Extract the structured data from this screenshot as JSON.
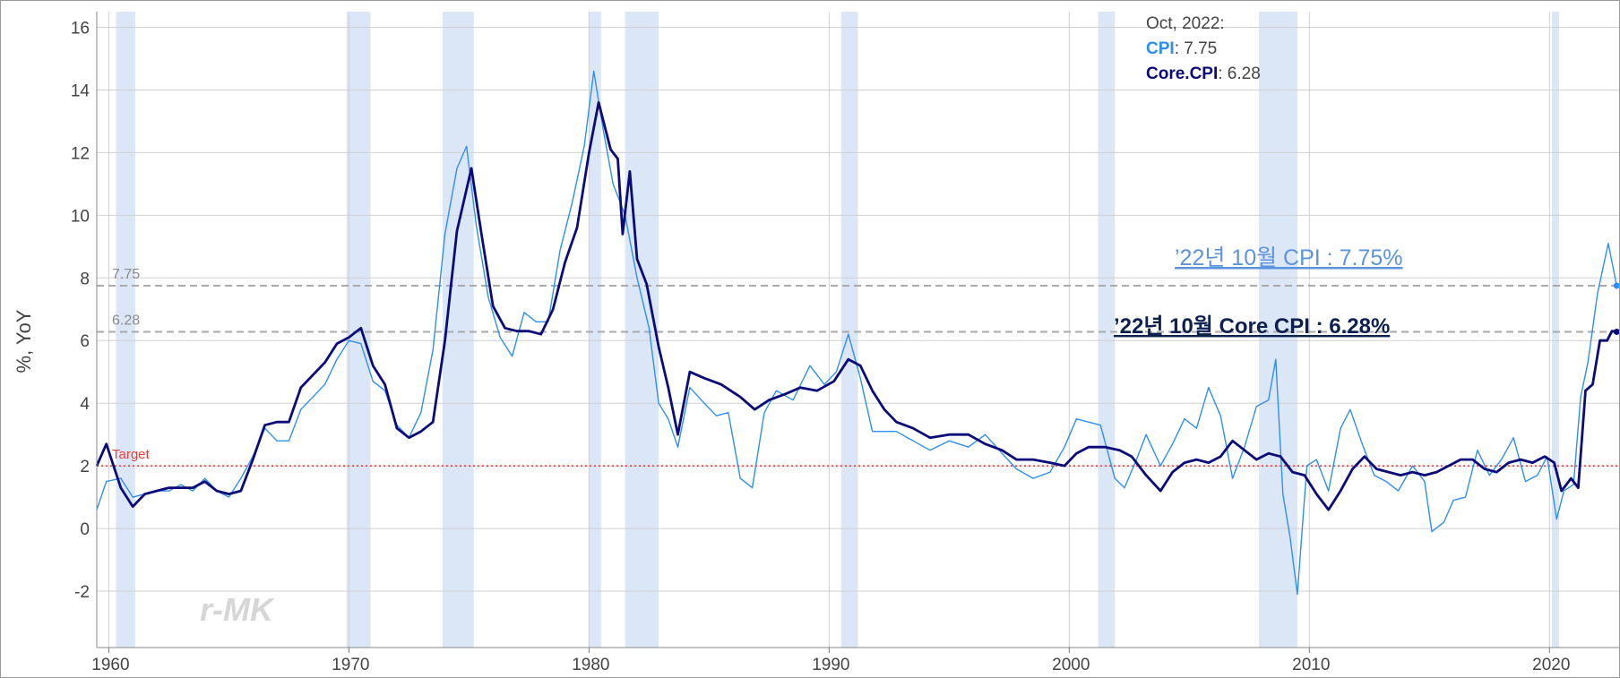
{
  "colors": {
    "cpi": "#2e8ff0",
    "core_cpi": "#0a0a7a",
    "recession": "#dbe7f7",
    "target": "#e8403a",
    "reference": "#aaaaaa",
    "grid": "#d0d0d0",
    "annot_cpi": "#5b93e0",
    "annot_core": "#0d2150"
  },
  "tooltip": {
    "date": "Oct, 2022:",
    "cpi_name": "CPI",
    "cpi_value": ": 7.75",
    "core_name": "Core.CPI",
    "core_value": ": 6.28"
  },
  "annotations": {
    "cpi": "’22년 10월 CPI : 7.75%",
    "core": "’22년 10월 Core CPI : 6.28%"
  },
  "watermark": "r-MK",
  "chart_data": {
    "type": "line",
    "ylabel": "%, YoY",
    "xlabel": "",
    "xlim": [
      1959.5,
      2022.9
    ],
    "ylim": [
      -3.8,
      16.5
    ],
    "x_ticks": [
      "1960",
      "1970",
      "1980",
      "1990",
      "2000",
      "2010",
      "2020"
    ],
    "y_ticks": [
      "16",
      "14",
      "12",
      "10",
      "8",
      "6",
      "4",
      "2",
      "0",
      "-2"
    ],
    "grid": true,
    "reference_lines": [
      {
        "label": "7.75",
        "y": 7.75,
        "style": "dashed"
      },
      {
        "label": "6.28",
        "y": 6.28,
        "style": "dashed"
      },
      {
        "label": "Target",
        "y": 2,
        "style": "dotted"
      }
    ],
    "recessions": [
      [
        1960.3,
        1961.1
      ],
      [
        1969.9,
        1970.9
      ],
      [
        1973.9,
        1975.2
      ],
      [
        1980.0,
        1980.5
      ],
      [
        1981.5,
        1982.9
      ],
      [
        1990.5,
        1991.2
      ],
      [
        2001.2,
        2001.9
      ],
      [
        2007.9,
        2009.5
      ],
      [
        2020.1,
        2020.4
      ]
    ],
    "series": [
      {
        "name": "CPI",
        "points": [
          [
            1959.5,
            0.6
          ],
          [
            1959.9,
            1.5
          ],
          [
            1960.5,
            1.6
          ],
          [
            1961.0,
            1.0
          ],
          [
            1961.5,
            1.1
          ],
          [
            1962.0,
            1.2
          ],
          [
            1962.5,
            1.2
          ],
          [
            1963.0,
            1.4
          ],
          [
            1963.5,
            1.2
          ],
          [
            1964.0,
            1.6
          ],
          [
            1964.5,
            1.2
          ],
          [
            1965.0,
            1.0
          ],
          [
            1965.5,
            1.6
          ],
          [
            1966.0,
            2.3
          ],
          [
            1966.5,
            3.2
          ],
          [
            1967.0,
            2.8
          ],
          [
            1967.5,
            2.8
          ],
          [
            1968.0,
            3.8
          ],
          [
            1968.5,
            4.2
          ],
          [
            1969.0,
            4.6
          ],
          [
            1969.5,
            5.4
          ],
          [
            1970.0,
            6.0
          ],
          [
            1970.5,
            5.9
          ],
          [
            1971.0,
            4.7
          ],
          [
            1971.5,
            4.4
          ],
          [
            1972.0,
            3.3
          ],
          [
            1972.5,
            2.9
          ],
          [
            1973.0,
            3.7
          ],
          [
            1973.5,
            5.7
          ],
          [
            1974.0,
            9.4
          ],
          [
            1974.5,
            11.5
          ],
          [
            1974.9,
            12.2
          ],
          [
            1975.3,
            9.7
          ],
          [
            1975.8,
            7.4
          ],
          [
            1976.3,
            6.1
          ],
          [
            1976.8,
            5.5
          ],
          [
            1977.3,
            6.9
          ],
          [
            1977.8,
            6.6
          ],
          [
            1978.3,
            6.6
          ],
          [
            1978.8,
            8.9
          ],
          [
            1979.3,
            10.4
          ],
          [
            1979.8,
            12.2
          ],
          [
            1980.2,
            14.6
          ],
          [
            1980.6,
            12.7
          ],
          [
            1981.0,
            11.0
          ],
          [
            1981.5,
            10.0
          ],
          [
            1982.0,
            8.0
          ],
          [
            1982.5,
            6.4
          ],
          [
            1982.9,
            4.0
          ],
          [
            1983.3,
            3.5
          ],
          [
            1983.7,
            2.6
          ],
          [
            1984.2,
            4.5
          ],
          [
            1984.8,
            4.0
          ],
          [
            1985.3,
            3.6
          ],
          [
            1985.8,
            3.7
          ],
          [
            1986.3,
            1.6
          ],
          [
            1986.8,
            1.3
          ],
          [
            1987.3,
            3.7
          ],
          [
            1987.8,
            4.4
          ],
          [
            1988.5,
            4.1
          ],
          [
            1989.2,
            5.2
          ],
          [
            1989.8,
            4.6
          ],
          [
            1990.3,
            5.0
          ],
          [
            1990.8,
            6.2
          ],
          [
            1991.3,
            4.8
          ],
          [
            1991.8,
            3.1
          ],
          [
            1992.3,
            3.1
          ],
          [
            1992.8,
            3.1
          ],
          [
            1993.5,
            2.8
          ],
          [
            1994.2,
            2.5
          ],
          [
            1995.0,
            2.8
          ],
          [
            1995.8,
            2.6
          ],
          [
            1996.5,
            3.0
          ],
          [
            1997.2,
            2.4
          ],
          [
            1997.8,
            1.9
          ],
          [
            1998.5,
            1.6
          ],
          [
            1999.2,
            1.8
          ],
          [
            1999.8,
            2.6
          ],
          [
            2000.3,
            3.5
          ],
          [
            2000.8,
            3.4
          ],
          [
            2001.3,
            3.3
          ],
          [
            2001.9,
            1.6
          ],
          [
            2002.3,
            1.3
          ],
          [
            2002.8,
            2.2
          ],
          [
            2003.2,
            3.0
          ],
          [
            2003.8,
            2.0
          ],
          [
            2004.3,
            2.7
          ],
          [
            2004.8,
            3.5
          ],
          [
            2005.3,
            3.2
          ],
          [
            2005.8,
            4.5
          ],
          [
            2006.3,
            3.6
          ],
          [
            2006.8,
            1.6
          ],
          [
            2007.3,
            2.6
          ],
          [
            2007.8,
            3.9
          ],
          [
            2008.3,
            4.1
          ],
          [
            2008.6,
            5.4
          ],
          [
            2008.9,
            1.1
          ],
          [
            2009.2,
            -0.3
          ],
          [
            2009.5,
            -2.1
          ],
          [
            2009.9,
            2.0
          ],
          [
            2010.3,
            2.2
          ],
          [
            2010.8,
            1.2
          ],
          [
            2011.3,
            3.2
          ],
          [
            2011.7,
            3.8
          ],
          [
            2012.2,
            2.7
          ],
          [
            2012.7,
            1.7
          ],
          [
            2013.2,
            1.5
          ],
          [
            2013.7,
            1.2
          ],
          [
            2014.3,
            2.0
          ],
          [
            2014.8,
            1.5
          ],
          [
            2015.1,
            -0.1
          ],
          [
            2015.6,
            0.2
          ],
          [
            2016.0,
            0.9
          ],
          [
            2016.5,
            1.0
          ],
          [
            2017.0,
            2.5
          ],
          [
            2017.5,
            1.7
          ],
          [
            2018.0,
            2.2
          ],
          [
            2018.5,
            2.9
          ],
          [
            2019.0,
            1.5
          ],
          [
            2019.5,
            1.7
          ],
          [
            2019.9,
            2.3
          ],
          [
            2020.3,
            0.3
          ],
          [
            2020.6,
            1.2
          ],
          [
            2021.0,
            1.4
          ],
          [
            2021.3,
            4.2
          ],
          [
            2021.6,
            5.3
          ],
          [
            2022.0,
            7.5
          ],
          [
            2022.45,
            9.1
          ],
          [
            2022.8,
            7.75
          ]
        ]
      },
      {
        "name": "Core.CPI",
        "points": [
          [
            1959.5,
            2.0
          ],
          [
            1959.9,
            2.7
          ],
          [
            1960.5,
            1.3
          ],
          [
            1961.0,
            0.7
          ],
          [
            1961.5,
            1.1
          ],
          [
            1962.0,
            1.2
          ],
          [
            1962.5,
            1.3
          ],
          [
            1963.0,
            1.3
          ],
          [
            1963.5,
            1.3
          ],
          [
            1964.0,
            1.5
          ],
          [
            1964.5,
            1.2
          ],
          [
            1965.0,
            1.1
          ],
          [
            1965.5,
            1.2
          ],
          [
            1966.0,
            2.2
          ],
          [
            1966.5,
            3.3
          ],
          [
            1967.0,
            3.4
          ],
          [
            1967.5,
            3.4
          ],
          [
            1968.0,
            4.5
          ],
          [
            1968.5,
            4.9
          ],
          [
            1969.0,
            5.3
          ],
          [
            1969.5,
            5.9
          ],
          [
            1970.0,
            6.1
          ],
          [
            1970.5,
            6.4
          ],
          [
            1971.0,
            5.2
          ],
          [
            1971.5,
            4.6
          ],
          [
            1972.0,
            3.2
          ],
          [
            1972.5,
            2.9
          ],
          [
            1973.0,
            3.1
          ],
          [
            1973.5,
            3.4
          ],
          [
            1974.0,
            6.0
          ],
          [
            1974.5,
            9.5
          ],
          [
            1975.1,
            11.5
          ],
          [
            1975.5,
            9.5
          ],
          [
            1976.0,
            7.1
          ],
          [
            1976.5,
            6.4
          ],
          [
            1977.0,
            6.3
          ],
          [
            1977.5,
            6.3
          ],
          [
            1978.0,
            6.2
          ],
          [
            1978.5,
            7.0
          ],
          [
            1979.0,
            8.5
          ],
          [
            1979.5,
            9.6
          ],
          [
            1980.0,
            12.0
          ],
          [
            1980.4,
            13.6
          ],
          [
            1980.9,
            12.1
          ],
          [
            1981.2,
            11.8
          ],
          [
            1981.4,
            9.4
          ],
          [
            1981.7,
            11.4
          ],
          [
            1982.0,
            8.6
          ],
          [
            1982.4,
            7.8
          ],
          [
            1982.9,
            5.8
          ],
          [
            1983.3,
            4.5
          ],
          [
            1983.7,
            3.0
          ],
          [
            1984.2,
            5.0
          ],
          [
            1984.8,
            4.8
          ],
          [
            1985.5,
            4.6
          ],
          [
            1986.3,
            4.2
          ],
          [
            1986.9,
            3.8
          ],
          [
            1987.5,
            4.1
          ],
          [
            1988.2,
            4.3
          ],
          [
            1988.8,
            4.5
          ],
          [
            1989.5,
            4.4
          ],
          [
            1990.2,
            4.7
          ],
          [
            1990.8,
            5.4
          ],
          [
            1991.3,
            5.2
          ],
          [
            1991.8,
            4.4
          ],
          [
            1992.3,
            3.8
          ],
          [
            1992.8,
            3.4
          ],
          [
            1993.5,
            3.2
          ],
          [
            1994.2,
            2.9
          ],
          [
            1995.0,
            3.0
          ],
          [
            1995.8,
            3.0
          ],
          [
            1996.5,
            2.7
          ],
          [
            1997.2,
            2.5
          ],
          [
            1997.8,
            2.2
          ],
          [
            1998.5,
            2.2
          ],
          [
            1999.2,
            2.1
          ],
          [
            1999.8,
            2.0
          ],
          [
            2000.3,
            2.4
          ],
          [
            2000.8,
            2.6
          ],
          [
            2001.5,
            2.6
          ],
          [
            2002.1,
            2.5
          ],
          [
            2002.6,
            2.3
          ],
          [
            2003.2,
            1.7
          ],
          [
            2003.8,
            1.2
          ],
          [
            2004.3,
            1.8
          ],
          [
            2004.8,
            2.1
          ],
          [
            2005.3,
            2.2
          ],
          [
            2005.8,
            2.1
          ],
          [
            2006.3,
            2.3
          ],
          [
            2006.8,
            2.8
          ],
          [
            2007.3,
            2.5
          ],
          [
            2007.8,
            2.2
          ],
          [
            2008.3,
            2.4
          ],
          [
            2008.8,
            2.3
          ],
          [
            2009.3,
            1.8
          ],
          [
            2009.8,
            1.7
          ],
          [
            2010.3,
            1.1
          ],
          [
            2010.8,
            0.6
          ],
          [
            2011.3,
            1.2
          ],
          [
            2011.8,
            1.9
          ],
          [
            2012.3,
            2.3
          ],
          [
            2012.8,
            1.9
          ],
          [
            2013.3,
            1.8
          ],
          [
            2013.8,
            1.7
          ],
          [
            2014.3,
            1.8
          ],
          [
            2014.8,
            1.7
          ],
          [
            2015.3,
            1.8
          ],
          [
            2015.8,
            2.0
          ],
          [
            2016.3,
            2.2
          ],
          [
            2016.8,
            2.2
          ],
          [
            2017.3,
            1.9
          ],
          [
            2017.8,
            1.8
          ],
          [
            2018.3,
            2.1
          ],
          [
            2018.8,
            2.2
          ],
          [
            2019.3,
            2.1
          ],
          [
            2019.8,
            2.3
          ],
          [
            2020.2,
            2.1
          ],
          [
            2020.5,
            1.2
          ],
          [
            2020.9,
            1.6
          ],
          [
            2021.2,
            1.3
          ],
          [
            2021.5,
            4.4
          ],
          [
            2021.8,
            4.6
          ],
          [
            2022.1,
            6.0
          ],
          [
            2022.4,
            6.0
          ],
          [
            2022.6,
            6.3
          ],
          [
            2022.8,
            6.28
          ]
        ]
      }
    ]
  }
}
